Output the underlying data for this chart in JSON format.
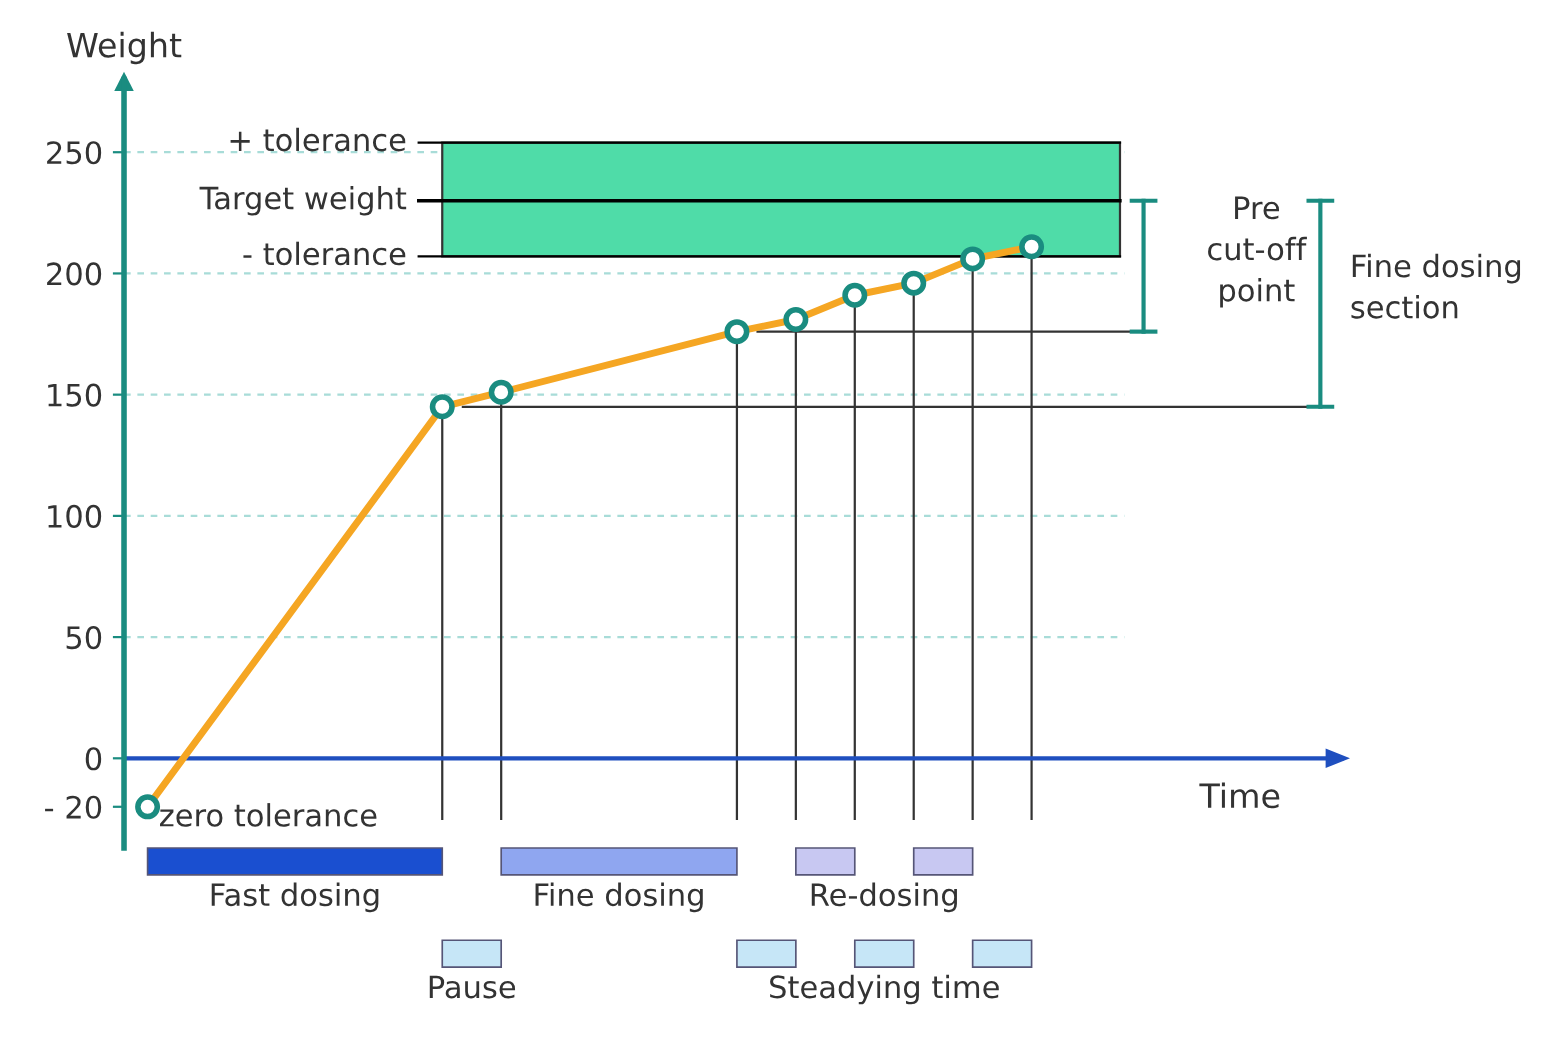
{
  "chart_data": {
    "type": "line",
    "ylabel": "Weight",
    "xlabel": "Time",
    "categories": [
      null,
      null,
      null,
      null,
      null,
      null,
      null,
      null,
      null,
      null,
      null,
      null,
      null,
      null,
      null,
      null
    ],
    "series": [
      {
        "color": "#f5a623",
        "values": [
          -20,
          null,
          null,
          null,
          null,
          145,
          151,
          null,
          null,
          null,
          176,
          181,
          191,
          196,
          206,
          211
        ]
      }
    ],
    "marker": "circle",
    "line_style": "solid",
    "grid": "y",
    "tick_labels": "y",
    "ylim": [
      -37,
      280
    ],
    "yticks": [
      {
        "value": -20,
        "label": "- 20"
      },
      0,
      50,
      100,
      150,
      200,
      250
    ],
    "ref_lines": [
      {
        "axis": "y",
        "value": 254,
        "label": "+ tolerance",
        "color": "#000000"
      },
      {
        "axis": "y",
        "value": 230,
        "label": "Target weight",
        "color": "#000000"
      },
      {
        "axis": "y",
        "value": 207,
        "label": "- tolerance",
        "color": "#000000"
      },
      {
        "axis": "y",
        "value": 0,
        "color": "#1f4fbf",
        "line_style": "solid"
      },
      {
        "axis": "y",
        "value": 176,
        "color": "#333333"
      },
      {
        "axis": "y",
        "value": 145,
        "color": "#333333"
      }
    ],
    "bands": [
      {
        "axis": "y",
        "from": 207,
        "to": 254,
        "color": "#4fdca8"
      }
    ],
    "annotations": [
      "Fast dosing",
      "Fine dosing",
      "Re-dosing",
      "Pause",
      "Steadying time",
      "Pre\ncut-off\npoint",
      "Fine dosing\nsection",
      "zero tolerance"
    ]
  }
}
